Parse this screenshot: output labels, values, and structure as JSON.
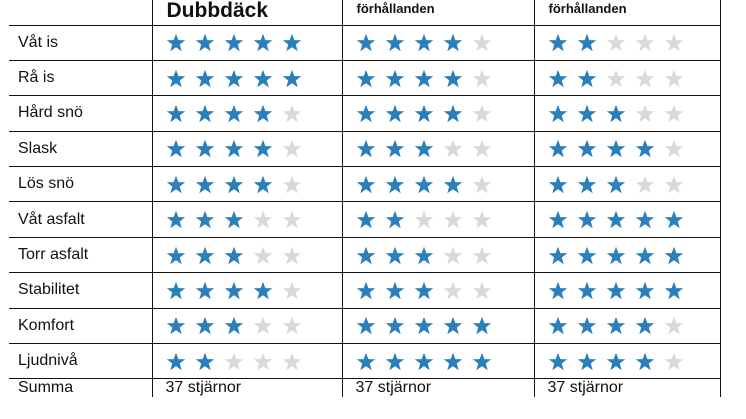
{
  "colors": {
    "filled_star": "#2b7fba",
    "empty_star": "#d9d9d9"
  },
  "columns": [
    {
      "header": "Dubbdäck",
      "size": "big"
    },
    {
      "header": "förhållanden",
      "size": "small"
    },
    {
      "header": "förhållanden",
      "size": "small"
    }
  ],
  "max_stars": 5,
  "rows": [
    {
      "label": "Våt is",
      "ratings": [
        5,
        4,
        2
      ]
    },
    {
      "label": "Rå is",
      "ratings": [
        5,
        4,
        2
      ]
    },
    {
      "label": "Hård snö",
      "ratings": [
        4,
        4,
        3
      ]
    },
    {
      "label": "Slask",
      "ratings": [
        4,
        3,
        4
      ]
    },
    {
      "label": "Lös snö",
      "ratings": [
        4,
        4,
        3
      ]
    },
    {
      "label": "Våt asfalt",
      "ratings": [
        3,
        2,
        5
      ]
    },
    {
      "label": "Torr asfalt",
      "ratings": [
        3,
        3,
        5
      ]
    },
    {
      "label": "Stabilitet",
      "ratings": [
        4,
        3,
        5
      ]
    },
    {
      "label": "Komfort",
      "ratings": [
        3,
        5,
        4
      ]
    },
    {
      "label": "Ljudnivå",
      "ratings": [
        2,
        5,
        4
      ]
    }
  ],
  "summary": {
    "label": "Summa",
    "values": [
      "37 stjärnor",
      "37 stjärnor",
      "37 stjärnor"
    ]
  }
}
